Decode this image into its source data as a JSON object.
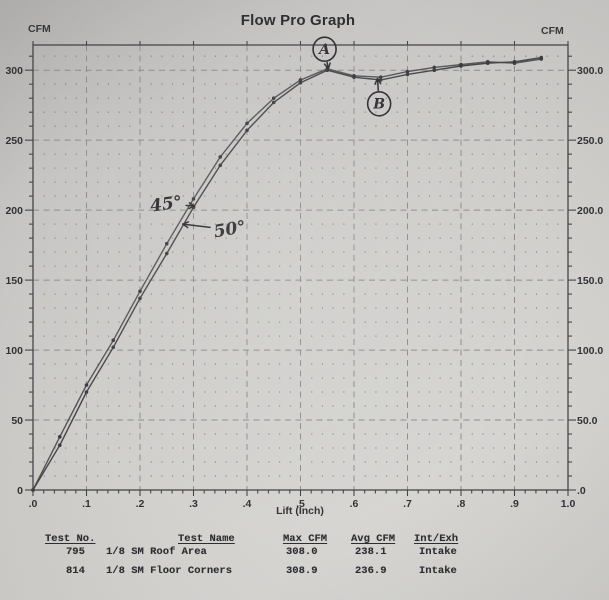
{
  "title": "Flow Pro Graph",
  "left_axis_caption": "CFM",
  "right_axis_caption": "CFM",
  "chart_data": {
    "type": "line",
    "title": "Flow Pro Graph",
    "xlabel": "Lift (Inch)",
    "ylabel": "CFM",
    "xlim": [
      0,
      1.0
    ],
    "ylim": [
      0,
      318
    ],
    "grid": "dashed major gridlines, dotted minor grid",
    "legend_position": "none",
    "x_tick_values": [
      0,
      0.1,
      0.2,
      0.3,
      0.4,
      0.5,
      0.6,
      0.7,
      0.8,
      0.9,
      1.0
    ],
    "x_tick_labels": [
      ".0",
      ".1",
      ".2",
      ".3",
      ".4",
      ".5",
      ".6",
      ".7",
      ".8",
      ".9",
      "1.0"
    ],
    "y_tick_values": [
      0,
      50,
      100,
      150,
      200,
      250,
      300
    ],
    "y_tick_labels_left": [
      "0",
      "50",
      "100",
      "150",
      "200",
      "250",
      "300"
    ],
    "y_tick_labels_right": [
      ".0",
      "50.0",
      "100.0",
      "150.0",
      "200.0",
      "250.0",
      "300.0"
    ],
    "x": [
      0,
      0.05,
      0.1,
      0.15,
      0.2,
      0.25,
      0.3,
      0.35,
      0.4,
      0.45,
      0.5,
      0.55,
      0.6,
      0.65,
      0.7,
      0.75,
      0.8,
      0.85,
      0.9,
      0.95
    ],
    "series": [
      {
        "name": "Test 795 - 1/8 SM Roof Area",
        "values": [
          0,
          38,
          75,
          107,
          142,
          176,
          208,
          238,
          262,
          280,
          293,
          301,
          296,
          295,
          299,
          302,
          304,
          306,
          305,
          308
        ]
      },
      {
        "name": "Test 814 - 1/8 SM Floor Corners",
        "values": [
          0,
          32,
          70,
          102,
          137,
          169,
          202,
          232,
          257,
          277,
          291,
          300,
          295,
          293,
          297,
          300,
          303,
          305,
          306,
          309
        ]
      }
    ],
    "annotations": [
      {
        "kind": "circled",
        "label": "A",
        "lift": 0.545,
        "cfm": 315,
        "arrow_to_lift": 0.552,
        "arrow_to_cfm": 301
      },
      {
        "kind": "circled",
        "label": "B",
        "lift": 0.647,
        "cfm": 276,
        "arrow_to_lift": 0.644,
        "arrow_to_cfm": 294
      },
      {
        "kind": "hand",
        "label": "45°",
        "rotate": -8,
        "lift": 0.249,
        "cfm": 204,
        "arrow_to_lift": 0.302,
        "arrow_to_cfm": 203
      },
      {
        "kind": "hand",
        "label": "50°",
        "rotate": -10,
        "lift": 0.368,
        "cfm": 186,
        "arrow_to_lift": 0.28,
        "arrow_to_cfm": 190
      }
    ]
  },
  "table": {
    "headers": [
      "Test No.",
      "Test Name",
      "Max CFM",
      "Avg CFM",
      "Int/Exh"
    ],
    "rows": [
      [
        "795",
        "1/8 SM Roof Area",
        "308.0",
        "238.1",
        "Intake"
      ],
      [
        "814",
        "1/8 SM Floor Corners",
        "308.9",
        "236.9",
        "Intake"
      ]
    ]
  }
}
